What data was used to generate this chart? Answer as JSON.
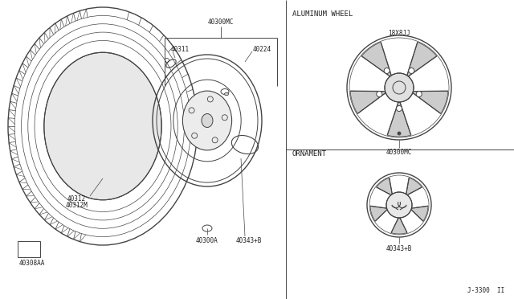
{
  "bg_color": "#ffffff",
  "line_color": "#444444",
  "text_color": "#222222",
  "labels": {
    "40300MC_top": "40300MC",
    "40311": "40311",
    "40224": "40224",
    "40312": "40312",
    "40312M": "40312M",
    "40308AA": "40308AA",
    "40300A": "40300A",
    "40343B": "40343+B",
    "aluminum_wheel": "ALUMINUM WHEEL",
    "18x8jj": "18X8JJ",
    "40300MC_bot": "40300MC",
    "ornament": "ORNAMENT",
    "40343B_right": "40343+B",
    "diagram_id": "J-3300  II"
  },
  "divx": 356,
  "font_small": 5.5,
  "font_section": 6.5
}
